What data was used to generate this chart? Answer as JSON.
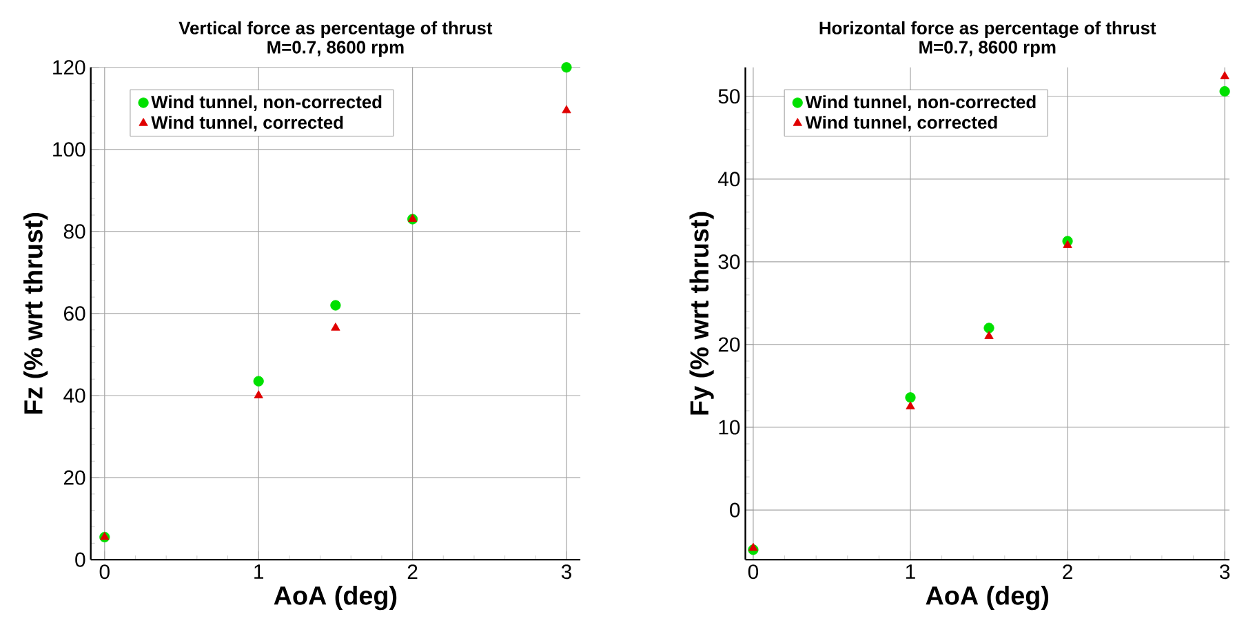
{
  "chart_data": [
    {
      "type": "scatter",
      "title": "Vertical force as percentage of thrust",
      "subtitle": "M=0.7, 8600 rpm",
      "xlabel": "AoA (deg)",
      "ylabel": "Fz (% wrt thrust)",
      "xlim": [
        -0.09,
        3.09
      ],
      "ylim": [
        0,
        120
      ],
      "xticks": [
        0,
        1,
        2,
        3
      ],
      "yticks": [
        0,
        20,
        40,
        60,
        80,
        100,
        120
      ],
      "grid": true,
      "legend": "top left",
      "series": [
        {
          "name": "Wind tunnel, non-corrected",
          "color": "#00e000",
          "marker": "circle",
          "x": [
            0,
            1,
            1.5,
            2,
            3
          ],
          "values": [
            5.5,
            43.5,
            62,
            83,
            120
          ]
        },
        {
          "name": "Wind tunnel, corrected",
          "color": "#e00000",
          "marker": "triangle",
          "x": [
            0,
            1,
            1.5,
            2,
            3
          ],
          "values": [
            5.5,
            40,
            56.5,
            83,
            109.5
          ]
        }
      ]
    },
    {
      "type": "scatter",
      "title": "Horizontal force as percentage of thrust",
      "subtitle": "M=0.7, 8600 rpm",
      "xlabel": "AoA (deg)",
      "ylabel": "Fy (% wrt thrust)",
      "xlim": [
        -0.05,
        3.03
      ],
      "ylim": [
        -6,
        53.5
      ],
      "xticks": [
        0,
        1,
        2,
        3
      ],
      "yticks": [
        0,
        10,
        20,
        30,
        40,
        50
      ],
      "grid": true,
      "legend": "top left",
      "series": [
        {
          "name": "Wind tunnel, non-corrected",
          "color": "#00e000",
          "marker": "circle",
          "x": [
            0,
            1,
            1.5,
            2,
            3
          ],
          "values": [
            -4.8,
            13.6,
            22,
            32.5,
            50.6
          ]
        },
        {
          "name": "Wind tunnel, corrected",
          "color": "#e00000",
          "marker": "triangle",
          "x": [
            0,
            1,
            1.5,
            2,
            3
          ],
          "values": [
            -4.6,
            12.5,
            21,
            32,
            52.4
          ]
        }
      ]
    }
  ]
}
